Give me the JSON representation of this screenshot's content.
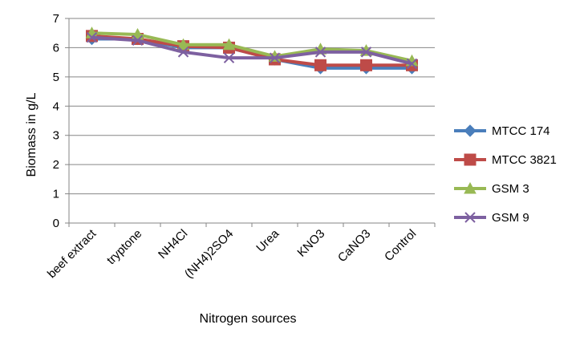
{
  "chart_data": {
    "type": "line",
    "title": "",
    "xlabel": "Nitrogen sources",
    "ylabel": "Biomass in g/L",
    "ylim": [
      0,
      7
    ],
    "yticks": [
      0,
      1,
      2,
      3,
      4,
      5,
      6,
      7
    ],
    "grid": true,
    "legend_position": "right",
    "categories": [
      "beef extract",
      "tryptone",
      "NH4Cl",
      "(NH4)2SO4",
      "Urea",
      "KNO3",
      "CaNO3",
      "Control"
    ],
    "series": [
      {
        "name": "MTCC 174",
        "color": "#4a7ebb",
        "marker": "diamond",
        "values": [
          6.3,
          6.3,
          6.0,
          6.0,
          5.6,
          5.3,
          5.3,
          5.3
        ]
      },
      {
        "name": "MTCC 3821",
        "color": "#be4b48",
        "marker": "square",
        "values": [
          6.4,
          6.3,
          6.05,
          6.0,
          5.6,
          5.4,
          5.4,
          5.4
        ]
      },
      {
        "name": "GSM 3",
        "color": "#98b954",
        "marker": "triangle",
        "values": [
          6.5,
          6.45,
          6.1,
          6.1,
          5.7,
          5.95,
          5.9,
          5.55
        ]
      },
      {
        "name": "GSM 9",
        "color": "#7d60a0",
        "marker": "x",
        "values": [
          6.35,
          6.25,
          5.85,
          5.65,
          5.65,
          5.85,
          5.85,
          5.45
        ]
      }
    ]
  }
}
